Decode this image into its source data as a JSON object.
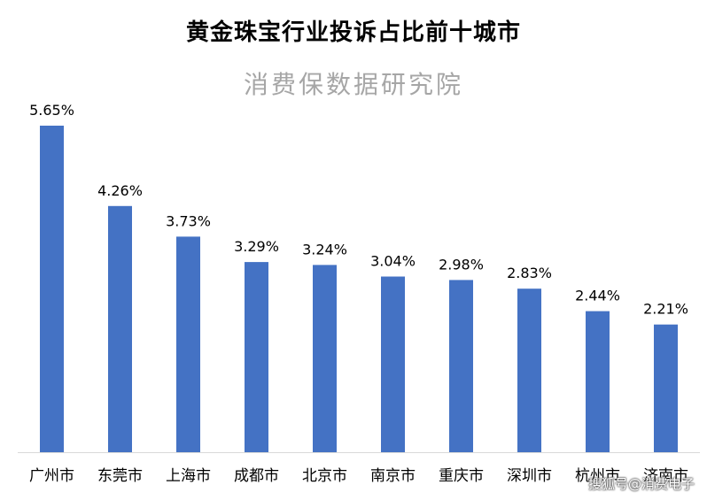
{
  "chart_data": {
    "type": "bar",
    "title": "黄金珠宝行业投诉占比前十城市",
    "subtitle": "消费保数据研究院",
    "categories": [
      "广州市",
      "东莞市",
      "上海市",
      "成都市",
      "北京市",
      "南京市",
      "重庆市",
      "深圳市",
      "杭州市",
      "济南市"
    ],
    "values": [
      5.65,
      4.26,
      3.73,
      3.29,
      3.24,
      3.04,
      2.98,
      2.83,
      2.44,
      2.21
    ],
    "data_labels": [
      "5.65%",
      "4.26%",
      "3.73%",
      "3.29%",
      "3.24%",
      "3.04%",
      "2.98%",
      "2.83%",
      "2.44%",
      "2.21%"
    ],
    "ylim": [
      0,
      5.65
    ],
    "grid": false,
    "legend": "none",
    "bar_color": "#4472c4",
    "axis_color": "#d9d9d9"
  },
  "watermark": "搜狐号@消费电子"
}
